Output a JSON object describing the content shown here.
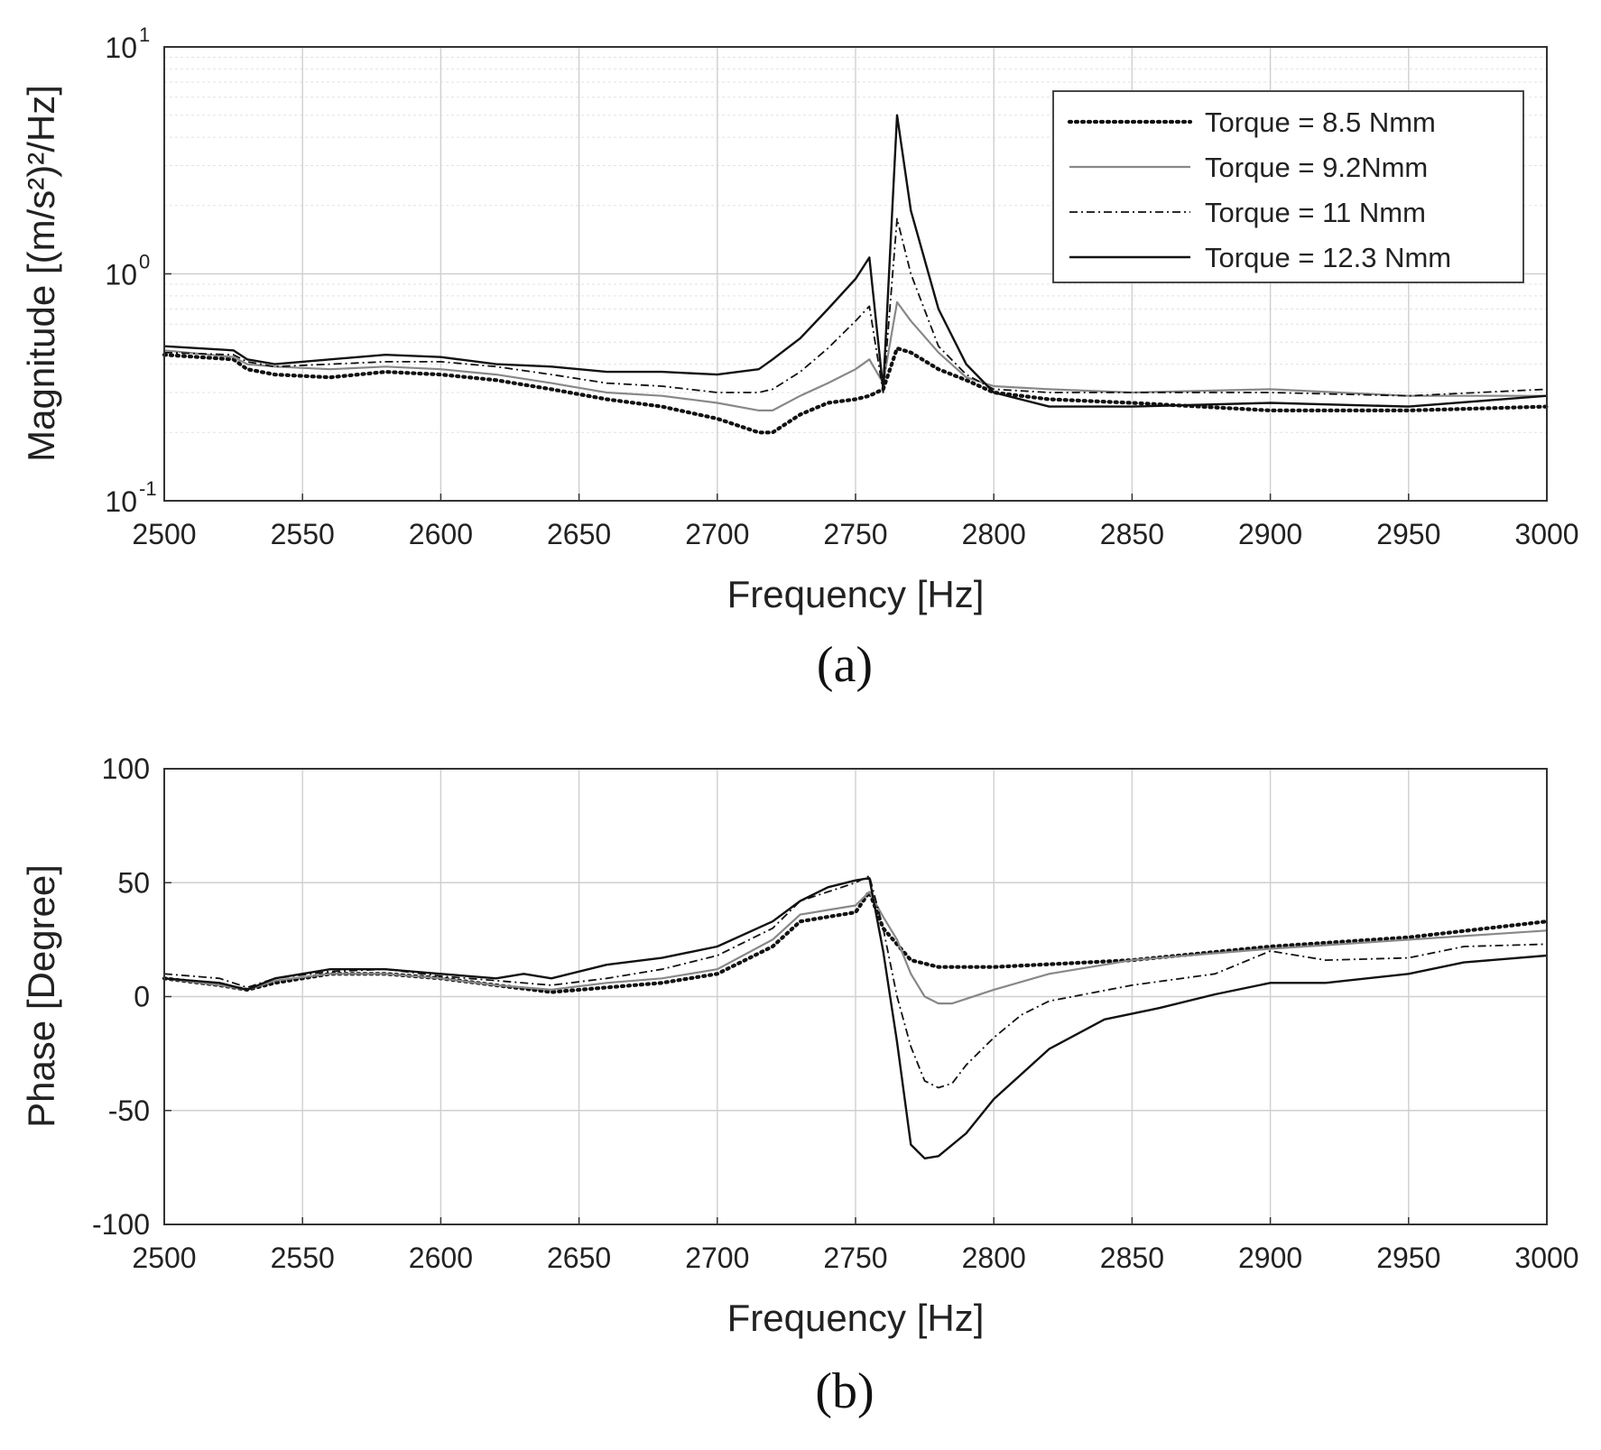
{
  "colors": {
    "black": "#111111",
    "gray": "#888888"
  },
  "chart_data": [
    {
      "id": "a",
      "type": "line",
      "yscale": "log",
      "caption": "(a)",
      "xlabel": "Frequency [Hz]",
      "ylabel": "Magnitude [(m/s²)²/Hz]",
      "xlim": [
        2500,
        3000
      ],
      "ylim": [
        0.1,
        10
      ],
      "xticks": [
        "2500",
        "2550",
        "2600",
        "2650",
        "2700",
        "2750",
        "2800",
        "2850",
        "2900",
        "2950",
        "3000"
      ],
      "yticks": [
        {
          "value": 0.1,
          "base": "10",
          "exp": "-1"
        },
        {
          "value": 1,
          "base": "10",
          "exp": "0"
        },
        {
          "value": 10,
          "base": "10",
          "exp": "1"
        }
      ],
      "grid": true,
      "legend_position": "top-right",
      "series": [
        {
          "name": "Torque = 8.5 Nmm",
          "style": "dotted",
          "x": [
            2500,
            2525,
            2530,
            2540,
            2560,
            2580,
            2600,
            2620,
            2640,
            2660,
            2680,
            2700,
            2715,
            2720,
            2730,
            2740,
            2750,
            2755,
            2760,
            2765,
            2770,
            2780,
            2790,
            2800,
            2820,
            2850,
            2900,
            2950,
            3000
          ],
          "y": [
            0.44,
            0.42,
            0.38,
            0.36,
            0.35,
            0.37,
            0.36,
            0.34,
            0.31,
            0.28,
            0.26,
            0.23,
            0.2,
            0.2,
            0.24,
            0.27,
            0.28,
            0.29,
            0.31,
            0.47,
            0.45,
            0.38,
            0.34,
            0.3,
            0.28,
            0.27,
            0.25,
            0.25,
            0.26
          ]
        },
        {
          "name": "Torque = 9.2Nmm",
          "style": "solid-gray",
          "x": [
            2500,
            2525,
            2530,
            2540,
            2560,
            2580,
            2600,
            2620,
            2640,
            2660,
            2680,
            2700,
            2715,
            2720,
            2730,
            2740,
            2750,
            2755,
            2760,
            2765,
            2770,
            2780,
            2790,
            2800,
            2820,
            2850,
            2900,
            2950,
            3000
          ],
          "y": [
            0.46,
            0.43,
            0.4,
            0.39,
            0.38,
            0.39,
            0.38,
            0.36,
            0.33,
            0.3,
            0.29,
            0.27,
            0.25,
            0.25,
            0.29,
            0.33,
            0.38,
            0.42,
            0.33,
            0.75,
            0.62,
            0.45,
            0.35,
            0.32,
            0.31,
            0.3,
            0.31,
            0.29,
            0.29
          ]
        },
        {
          "name": "Torque = 11 Nmm",
          "style": "dashdot",
          "x": [
            2500,
            2525,
            2530,
            2540,
            2560,
            2580,
            2600,
            2620,
            2640,
            2660,
            2680,
            2700,
            2715,
            2720,
            2730,
            2740,
            2750,
            2755,
            2760,
            2765,
            2770,
            2780,
            2790,
            2800,
            2820,
            2850,
            2900,
            2950,
            3000
          ],
          "y": [
            0.45,
            0.44,
            0.41,
            0.39,
            0.4,
            0.41,
            0.41,
            0.39,
            0.36,
            0.33,
            0.32,
            0.3,
            0.3,
            0.31,
            0.37,
            0.47,
            0.62,
            0.72,
            0.3,
            1.75,
            1.0,
            0.48,
            0.36,
            0.31,
            0.3,
            0.3,
            0.3,
            0.29,
            0.31
          ]
        },
        {
          "name": "Torque = 12.3 Nmm",
          "style": "solid-black",
          "x": [
            2500,
            2525,
            2530,
            2540,
            2560,
            2580,
            2600,
            2620,
            2640,
            2660,
            2680,
            2700,
            2715,
            2720,
            2730,
            2740,
            2750,
            2755,
            2760,
            2765,
            2770,
            2780,
            2790,
            2800,
            2820,
            2850,
            2900,
            2950,
            3000
          ],
          "y": [
            0.48,
            0.46,
            0.42,
            0.4,
            0.42,
            0.44,
            0.43,
            0.4,
            0.39,
            0.37,
            0.37,
            0.36,
            0.38,
            0.42,
            0.52,
            0.7,
            0.95,
            1.18,
            0.31,
            5.0,
            1.9,
            0.7,
            0.4,
            0.3,
            0.26,
            0.26,
            0.27,
            0.26,
            0.29
          ]
        }
      ]
    },
    {
      "id": "b",
      "type": "line",
      "yscale": "linear",
      "caption": "(b)",
      "xlabel": "Frequency [Hz]",
      "ylabel": "Phase [Degree]",
      "xlim": [
        2500,
        3000
      ],
      "ylim": [
        -100,
        100
      ],
      "xticks": [
        "2500",
        "2550",
        "2600",
        "2650",
        "2700",
        "2750",
        "2800",
        "2850",
        "2900",
        "2950",
        "3000"
      ],
      "yticks": [
        "-100",
        "-50",
        "0",
        "50",
        "100"
      ],
      "grid": true,
      "series": [
        {
          "name": "Torque = 8.5 Nmm",
          "style": "dotted",
          "x": [
            2500,
            2520,
            2530,
            2540,
            2560,
            2580,
            2600,
            2620,
            2640,
            2660,
            2680,
            2700,
            2720,
            2730,
            2740,
            2750,
            2755,
            2760,
            2770,
            2780,
            2800,
            2850,
            2900,
            2950,
            3000
          ],
          "y": [
            8,
            5,
            3,
            6,
            10,
            10,
            8,
            5,
            2,
            4,
            6,
            10,
            22,
            33,
            35,
            37,
            46,
            30,
            16,
            13,
            13,
            16,
            22,
            26,
            33
          ]
        },
        {
          "name": "Torque = 9.2Nmm",
          "style": "solid-gray",
          "x": [
            2500,
            2520,
            2530,
            2540,
            2560,
            2580,
            2600,
            2620,
            2640,
            2660,
            2680,
            2700,
            2720,
            2730,
            2740,
            2750,
            2755,
            2760,
            2765,
            2770,
            2775,
            2780,
            2785,
            2800,
            2820,
            2850,
            2900,
            2950,
            3000
          ],
          "y": [
            8,
            5,
            3,
            7,
            10,
            10,
            8,
            5,
            3,
            6,
            8,
            12,
            25,
            36,
            38,
            40,
            46,
            35,
            25,
            10,
            0,
            -3,
            -3,
            3,
            10,
            16,
            21,
            25,
            29
          ]
        },
        {
          "name": "Torque = 11 Nmm",
          "style": "dashdot",
          "x": [
            2500,
            2520,
            2530,
            2540,
            2560,
            2580,
            2600,
            2620,
            2640,
            2660,
            2680,
            2700,
            2720,
            2730,
            2740,
            2750,
            2755,
            2760,
            2765,
            2770,
            2775,
            2780,
            2785,
            2790,
            2800,
            2810,
            2820,
            2850,
            2880,
            2900,
            2920,
            2950,
            2970,
            3000
          ],
          "y": [
            10,
            8,
            4,
            8,
            11,
            12,
            9,
            7,
            5,
            8,
            12,
            18,
            30,
            42,
            46,
            50,
            53,
            30,
            0,
            -22,
            -37,
            -40,
            -38,
            -30,
            -18,
            -8,
            -2,
            5,
            10,
            20,
            16,
            17,
            22,
            23
          ]
        },
        {
          "name": "Torque = 12.3 Nmm",
          "style": "solid-black",
          "x": [
            2500,
            2520,
            2530,
            2540,
            2560,
            2580,
            2600,
            2620,
            2630,
            2640,
            2660,
            2680,
            2700,
            2720,
            2730,
            2740,
            2750,
            2755,
            2760,
            2765,
            2770,
            2775,
            2780,
            2790,
            2800,
            2820,
            2840,
            2860,
            2880,
            2900,
            2920,
            2950,
            2970,
            3000
          ],
          "y": [
            8,
            6,
            3,
            8,
            12,
            12,
            10,
            8,
            10,
            8,
            14,
            17,
            22,
            33,
            42,
            48,
            51,
            52,
            20,
            -20,
            -65,
            -71,
            -70,
            -60,
            -45,
            -23,
            -10,
            -5,
            1,
            6,
            6,
            10,
            15,
            18
          ]
        }
      ]
    }
  ]
}
